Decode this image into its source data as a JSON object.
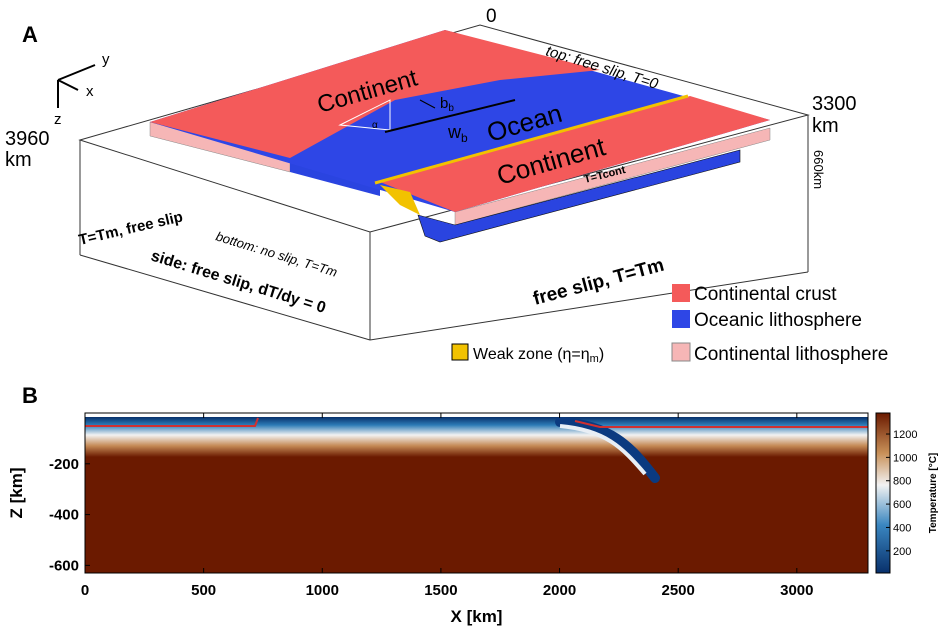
{
  "panel_a": {
    "label": "A",
    "origin": "0",
    "axis_y": "y",
    "axis_x": "x",
    "axis_z": "z",
    "left_extent": "3960",
    "left_unit": "km",
    "right_extent": "3300",
    "right_unit": "km",
    "top_bc": "top: free slip, T=0",
    "continent_upper": "Continent",
    "ocean": "Ocean",
    "continent_lower": "Continent",
    "bb": {
      "main": "b",
      "sub": "b"
    },
    "wb": {
      "main": "w",
      "sub": "b"
    },
    "angle": "α",
    "t_cont": "T=Tcont",
    "depth": "660km",
    "left_bc": "T=Tm, free slip",
    "bottom_bc": "bottom: no slip, T=Tm",
    "side_bc": "side: free slip, dT/dy = 0",
    "front_bc": "free slip, T=Tm",
    "legend": {
      "crust": "Continental crust",
      "oceanic": "Oceanic lithosphere",
      "weak": {
        "main": "Weak zone (η=η",
        "sub": "m",
        "end": ")"
      },
      "cont_lith": "Continental lithosphere"
    }
  },
  "chart_data": {
    "type": "heatmap",
    "label": "B",
    "xlabel": "X [km]",
    "ylabel": "Z [km]",
    "xlim": [
      0,
      3300
    ],
    "xticks": [
      0,
      500,
      1000,
      1500,
      2000,
      2500,
      3000
    ],
    "ylim": [
      -630,
      0
    ],
    "yticks": [
      -200,
      -400,
      -600
    ],
    "colorbar": {
      "label": "Temperature [°C]",
      "lim": [
        10,
        1380
      ],
      "ticks": [
        200,
        400,
        600,
        800,
        1000,
        1200
      ]
    }
  }
}
